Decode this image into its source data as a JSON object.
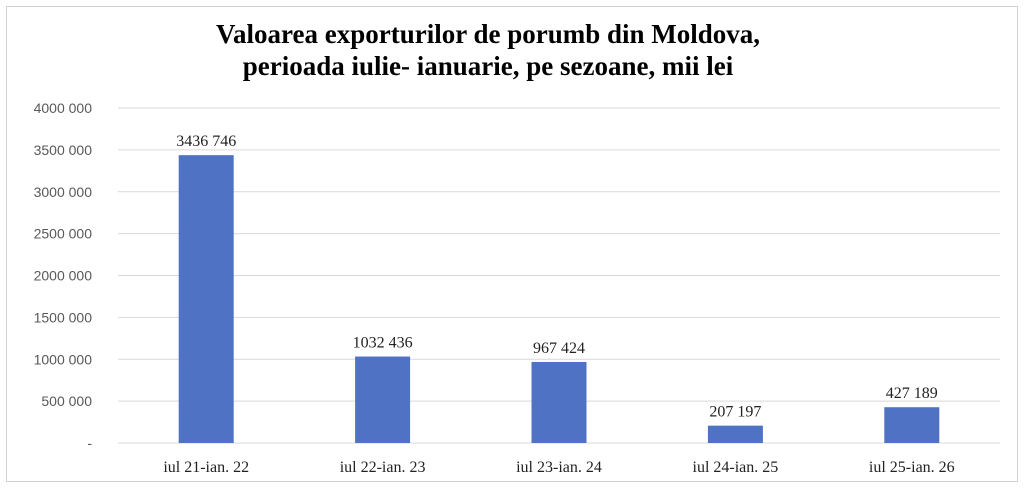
{
  "chart_data": {
    "type": "bar",
    "title_line1": "Valoarea exporturilor de porumb din Moldova,",
    "title_line2": "perioada iulie- ianuarie, pe sezoane, mii lei",
    "categories": [
      "iul 21-ian. 22",
      "iul 22-ian. 23",
      "iul 23-ian. 24",
      "iul 24-ian. 25",
      "iul 25-ian. 26"
    ],
    "values": [
      3436746,
      1032436,
      967424,
      207197,
      427189
    ],
    "data_labels": [
      "3436 746",
      "1032 436",
      "967 424",
      "207 197",
      "427 189"
    ],
    "ylim": [
      0,
      4000000
    ],
    "yticks": [
      0,
      500000,
      1000000,
      1500000,
      2000000,
      2500000,
      3000000,
      3500000,
      4000000
    ],
    "ytick_labels": [
      "-",
      "500 000",
      "1000 000",
      "1500 000",
      "2000 000",
      "2500 000",
      "3000 000",
      "3500 000",
      "4000 000"
    ],
    "grid": true,
    "bar_color": "#4f72c4",
    "grid_color": "#d9d9d9"
  }
}
